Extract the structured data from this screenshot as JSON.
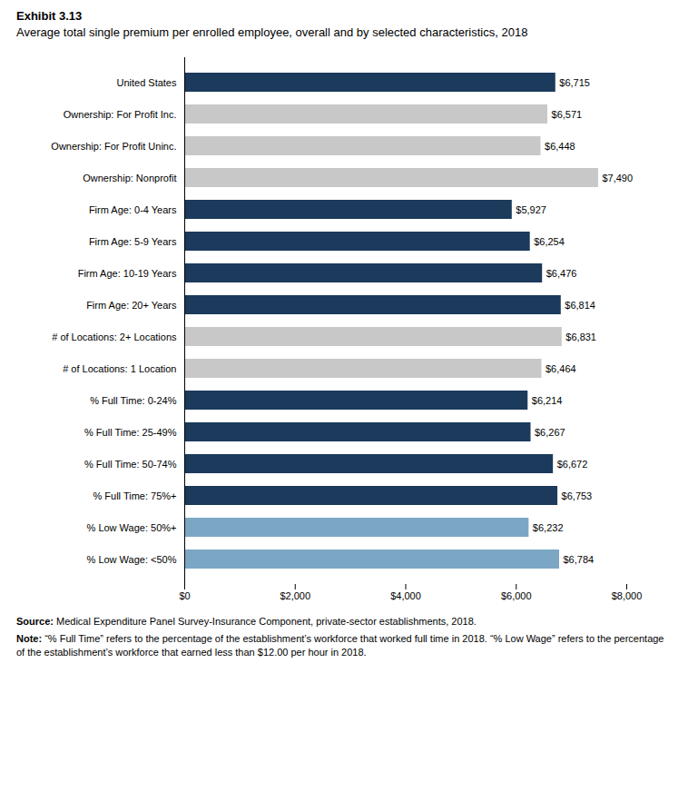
{
  "chart_data": {
    "type": "bar",
    "orientation": "horizontal",
    "title": "Exhibit 3.13",
    "subtitle": "Average total single premium per enrolled employee, overall and by selected characteristics, 2018",
    "categories": [
      "United States",
      "Ownership: For Profit Inc.",
      "Ownership: For Profit Uninc.",
      "Ownership: Nonprofit",
      "Firm Age: 0-4 Years",
      "Firm Age: 5-9 Years",
      "Firm Age: 10-19 Years",
      "Firm Age: 20+ Years",
      "# of Locations: 2+ Locations",
      "# of Locations: 1 Location",
      "% Full Time: 0-24%",
      "% Full Time: 25-49%",
      "% Full Time: 50-74%",
      "% Full Time: 75%+",
      "% Low Wage: 50%+",
      "% Low Wage: <50%"
    ],
    "values": [
      6715,
      6571,
      6448,
      7490,
      5927,
      6254,
      6476,
      6814,
      6831,
      6464,
      6214,
      6267,
      6672,
      6753,
      6232,
      6784
    ],
    "value_labels": [
      "$6,715",
      "$6,571",
      "$6,448",
      "$7,490",
      "$5,927",
      "$6,254",
      "$6,476",
      "$6,814",
      "$6,831",
      "$6,464",
      "$6,214",
      "$6,267",
      "$6,672",
      "$6,753",
      "$6,232",
      "$6,784"
    ],
    "data_labels": true,
    "colors": [
      "#1B3A5C",
      "#C8C8C8",
      "#C8C8C8",
      "#C8C8C8",
      "#1B3A5C",
      "#1B3A5C",
      "#1B3A5C",
      "#1B3A5C",
      "#C8C8C8",
      "#C8C8C8",
      "#1B3A5C",
      "#1B3A5C",
      "#1B3A5C",
      "#1B3A5C",
      "#7BA7C4",
      "#7BA7C4"
    ],
    "xlim": [
      0,
      8000
    ],
    "xticks": [
      {
        "value": 0,
        "label": "$0"
      },
      {
        "value": 2000,
        "label": "$2,000"
      },
      {
        "value": 4000,
        "label": "$4,000"
      },
      {
        "value": 6000,
        "label": "$6,000"
      },
      {
        "value": 8000,
        "label": "$8,000"
      }
    ],
    "grid": false,
    "annotations": [
      "Source: Medical Expenditure Panel Survey-Insurance Component, private-sector establishments, 2018.",
      "Note: “% Full Time” refers to the percentage of the establishment’s workforce that worked full time in 2018. “% Low Wage” refers to the percentage of the establishment’s workforce that earned less than $12.00 per hour in 2018."
    ]
  }
}
